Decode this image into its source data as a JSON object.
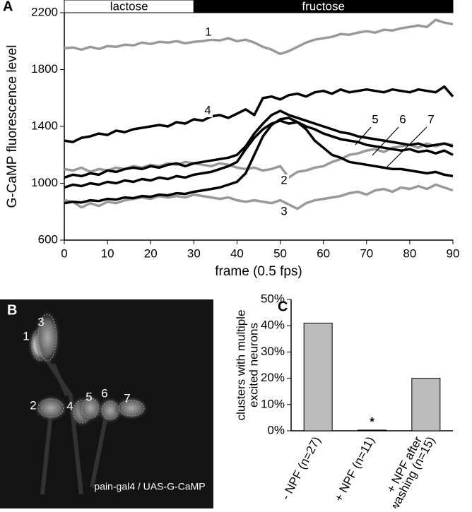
{
  "chart_data": [
    {
      "type": "line",
      "panel_label": "A",
      "ylabel": "G-CaMP fluorescence level",
      "xlabel": "frame (0.5 fps)",
      "xlim": [
        0,
        90
      ],
      "xticks": [
        0,
        10,
        20,
        30,
        40,
        50,
        60,
        70,
        80,
        90
      ],
      "ylim": [
        600,
        2200
      ],
      "yticks": [
        600,
        1000,
        1400,
        1800,
        2200
      ],
      "periods": [
        {
          "label": "lactose",
          "start": 0,
          "end": 30
        },
        {
          "label": "fructose",
          "start": 30,
          "end": 90
        }
      ],
      "x": [
        0,
        2,
        4,
        6,
        8,
        10,
        12,
        14,
        16,
        18,
        20,
        22,
        24,
        26,
        28,
        30,
        32,
        34,
        36,
        38,
        40,
        42,
        44,
        46,
        48,
        50,
        52,
        54,
        56,
        58,
        60,
        62,
        64,
        66,
        68,
        70,
        72,
        74,
        76,
        78,
        80,
        82,
        84,
        86,
        88,
        90
      ],
      "series": [
        {
          "name": "1",
          "color": "#999999",
          "values": [
            1950,
            1955,
            1940,
            1960,
            1945,
            1965,
            1960,
            1975,
            1970,
            1990,
            1980,
            1995,
            1990,
            2000,
            1985,
            1995,
            2000,
            2010,
            2005,
            2020,
            2000,
            2010,
            1990,
            1960,
            1940,
            1910,
            1930,
            1960,
            1990,
            2010,
            2020,
            2030,
            2050,
            2045,
            2060,
            2070,
            2060,
            2080,
            2075,
            2090,
            2100,
            2110,
            2100,
            2150,
            2130,
            2120
          ]
        },
        {
          "name": "2",
          "color": "#999999",
          "values": [
            1100,
            1090,
            1110,
            1080,
            1100,
            1090,
            1110,
            1100,
            1120,
            1110,
            1130,
            1120,
            1140,
            1130,
            1150,
            1140,
            1130,
            1120,
            1140,
            1130,
            1110,
            1100,
            1110,
            1090,
            1100,
            1120,
            1040,
            1080,
            1090,
            1110,
            1120,
            1150,
            1170,
            1200,
            1210,
            1230,
            1240,
            1220,
            1250,
            1260,
            1270,
            1250,
            1280,
            1260,
            1280,
            1270
          ]
        },
        {
          "name": "3",
          "color": "#999999",
          "values": [
            880,
            870,
            830,
            860,
            840,
            870,
            860,
            880,
            890,
            900,
            890,
            910,
            900,
            910,
            900,
            920,
            910,
            900,
            890,
            900,
            880,
            870,
            880,
            870,
            860,
            880,
            850,
            820,
            860,
            880,
            890,
            900,
            910,
            930,
            940,
            920,
            950,
            960,
            940,
            970,
            960,
            980,
            960,
            990,
            970,
            950
          ]
        },
        {
          "name": "4",
          "color": "#000000",
          "values": [
            1300,
            1290,
            1320,
            1330,
            1350,
            1340,
            1370,
            1360,
            1380,
            1390,
            1400,
            1410,
            1400,
            1430,
            1420,
            1450,
            1440,
            1470,
            1480,
            1460,
            1490,
            1520,
            1480,
            1600,
            1610,
            1590,
            1620,
            1630,
            1610,
            1640,
            1650,
            1630,
            1660,
            1640,
            1650,
            1660,
            1650,
            1640,
            1660,
            1650,
            1640,
            1660,
            1650,
            1640,
            1680,
            1610
          ]
        },
        {
          "name": "5",
          "color": "#000000",
          "values": [
            1040,
            1060,
            1050,
            1070,
            1060,
            1090,
            1080,
            1100,
            1110,
            1100,
            1120,
            1110,
            1130,
            1140,
            1120,
            1140,
            1150,
            1160,
            1170,
            1180,
            1200,
            1260,
            1350,
            1420,
            1480,
            1510,
            1480,
            1460,
            1440,
            1420,
            1400,
            1380,
            1360,
            1350,
            1330,
            1320,
            1310,
            1300,
            1290,
            1280,
            1270,
            1280,
            1260,
            1270,
            1280,
            1260
          ]
        },
        {
          "name": "6",
          "color": "#000000",
          "values": [
            970,
            990,
            980,
            1000,
            990,
            1010,
            1000,
            1020,
            1010,
            1030,
            1020,
            1040,
            1030,
            1050,
            1040,
            1060,
            1070,
            1080,
            1100,
            1120,
            1150,
            1240,
            1320,
            1380,
            1420,
            1440,
            1420,
            1430,
            1400,
            1380,
            1350,
            1330,
            1310,
            1300,
            1290,
            1270,
            1260,
            1250,
            1240,
            1230,
            1240,
            1220,
            1230,
            1210,
            1230,
            1200
          ]
        },
        {
          "name": "7",
          "color": "#000000",
          "values": [
            860,
            870,
            865,
            880,
            875,
            890,
            885,
            900,
            895,
            910,
            905,
            920,
            915,
            930,
            925,
            940,
            950,
            960,
            970,
            990,
            1010,
            1070,
            1200,
            1330,
            1410,
            1450,
            1460,
            1430,
            1380,
            1300,
            1250,
            1200,
            1180,
            1150,
            1140,
            1130,
            1120,
            1110,
            1100,
            1100,
            1090,
            1080,
            1070,
            1080,
            1060,
            1050
          ]
        }
      ]
    },
    {
      "type": "bar",
      "panel_label": "C",
      "ylabel": [
        "clusters with multiple",
        "excited neurons"
      ],
      "categories": [
        [
          "- NPF (n=27)"
        ],
        [
          "+ NPF (n=11)"
        ],
        [
          "+ NPF after",
          "washing (n=15)"
        ]
      ],
      "values": [
        41,
        0,
        20
      ],
      "color": "#bbbbbb",
      "annotations": [
        {
          "category": 1,
          "text": "*"
        }
      ],
      "ylim": [
        0,
        50
      ],
      "yticks": [
        {
          "value": 0,
          "label": "0%"
        },
        {
          "value": 10,
          "label": "10%"
        },
        {
          "value": 20,
          "label": "20%"
        },
        {
          "value": 30,
          "label": "30%"
        },
        {
          "value": 40,
          "label": "40%"
        },
        {
          "value": 50,
          "label": "50%"
        }
      ]
    }
  ],
  "image": {
    "panel_label": "B",
    "labels": [
      "1",
      "3",
      "2",
      "4",
      "5",
      "6",
      "7"
    ],
    "caption": "pain-gal4 / UAS-G-CaMP"
  }
}
